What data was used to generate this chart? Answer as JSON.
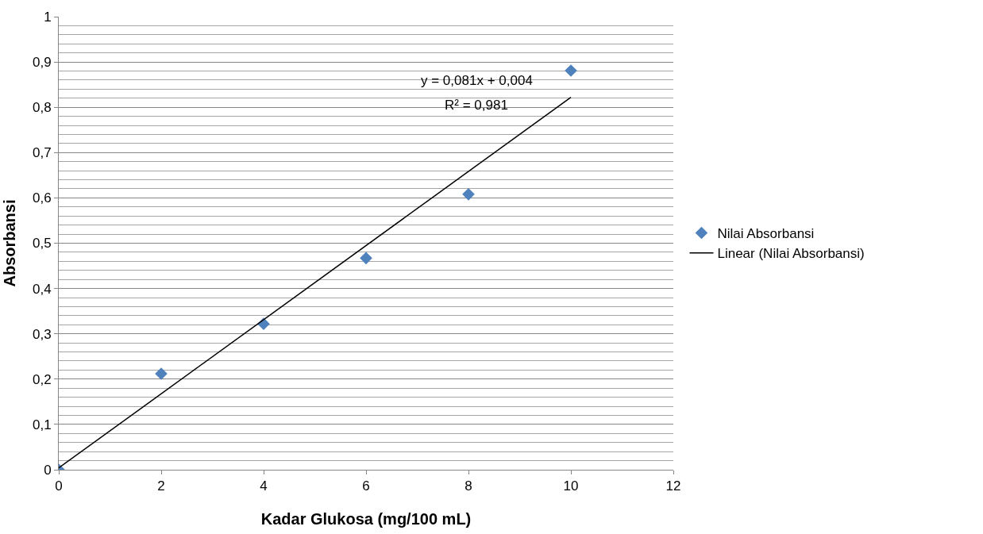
{
  "chart_data": {
    "type": "scatter",
    "xlabel": "Kadar Glukosa (mg/100 mL)",
    "ylabel": "Absorbansi",
    "x": [
      0,
      2,
      4,
      6,
      8,
      10
    ],
    "series": [
      {
        "name": "Nilai Absorbansi",
        "color": "#4f81bd",
        "marker": "diamond",
        "values": [
          0,
          0.212,
          0.322,
          0.467,
          0.608,
          0.881
        ]
      },
      {
        "name": "Linear (Nilai Absorbansi)",
        "type": "line",
        "color": "#000000",
        "marker": "none",
        "x": [
          0,
          10
        ],
        "values": [
          0.004,
          0.822
        ]
      }
    ],
    "annotations": [
      "y = 0,081x + 0,004",
      "R² = 0,981"
    ],
    "xlim": [
      0,
      12
    ],
    "xticks": [
      0,
      2,
      4,
      6,
      8,
      10,
      12
    ],
    "ylim": [
      0,
      1
    ],
    "yticks": [
      {
        "value": 0,
        "label": "0"
      },
      {
        "value": 0.1,
        "label": "0,1"
      },
      {
        "value": 0.2,
        "label": "0,2"
      },
      {
        "value": 0.3,
        "label": "0,3"
      },
      {
        "value": 0.4,
        "label": "0,4"
      },
      {
        "value": 0.5,
        "label": "0,5"
      },
      {
        "value": 0.6,
        "label": "0,6"
      },
      {
        "value": 0.7,
        "label": "0,7"
      },
      {
        "value": 0.8,
        "label": "0,8"
      },
      {
        "value": 0.9,
        "label": "0,9"
      },
      {
        "value": 1,
        "label": "1"
      }
    ],
    "grid": "y",
    "legend": "right",
    "line_style": "solid"
  }
}
